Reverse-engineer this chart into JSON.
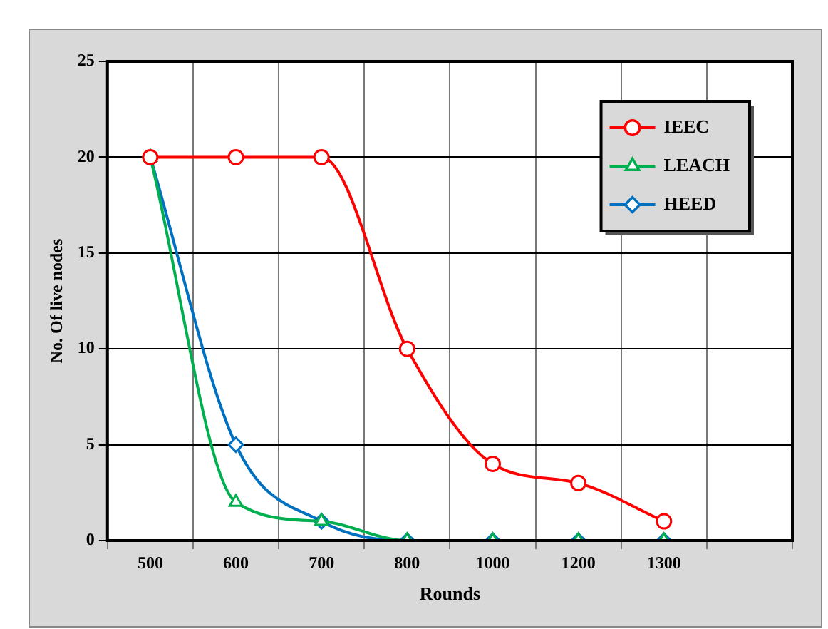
{
  "chart_data": {
    "type": "line",
    "xlabel": "Rounds",
    "ylabel": "No. Of live nodes",
    "categories": [
      "500",
      "600",
      "700",
      "800",
      "1000",
      "1200",
      "1300",
      null
    ],
    "series": [
      {
        "name": "IEEC",
        "color": "#ff0000",
        "marker": "circle",
        "values": [
          20,
          20,
          20,
          10,
          4,
          3,
          1,
          null
        ]
      },
      {
        "name": "LEACH",
        "color": "#00b050",
        "marker": "triangle",
        "values": [
          20,
          2,
          1,
          0,
          0,
          0,
          0,
          null
        ]
      },
      {
        "name": "HEED",
        "color": "#0070c0",
        "marker": "diamond",
        "values": [
          20,
          5,
          1,
          0,
          0,
          0,
          0,
          null
        ]
      }
    ],
    "ylim": [
      0,
      25
    ],
    "yticks": [
      0,
      5,
      10,
      15,
      20,
      25
    ],
    "grid": true,
    "legend": "top right"
  }
}
